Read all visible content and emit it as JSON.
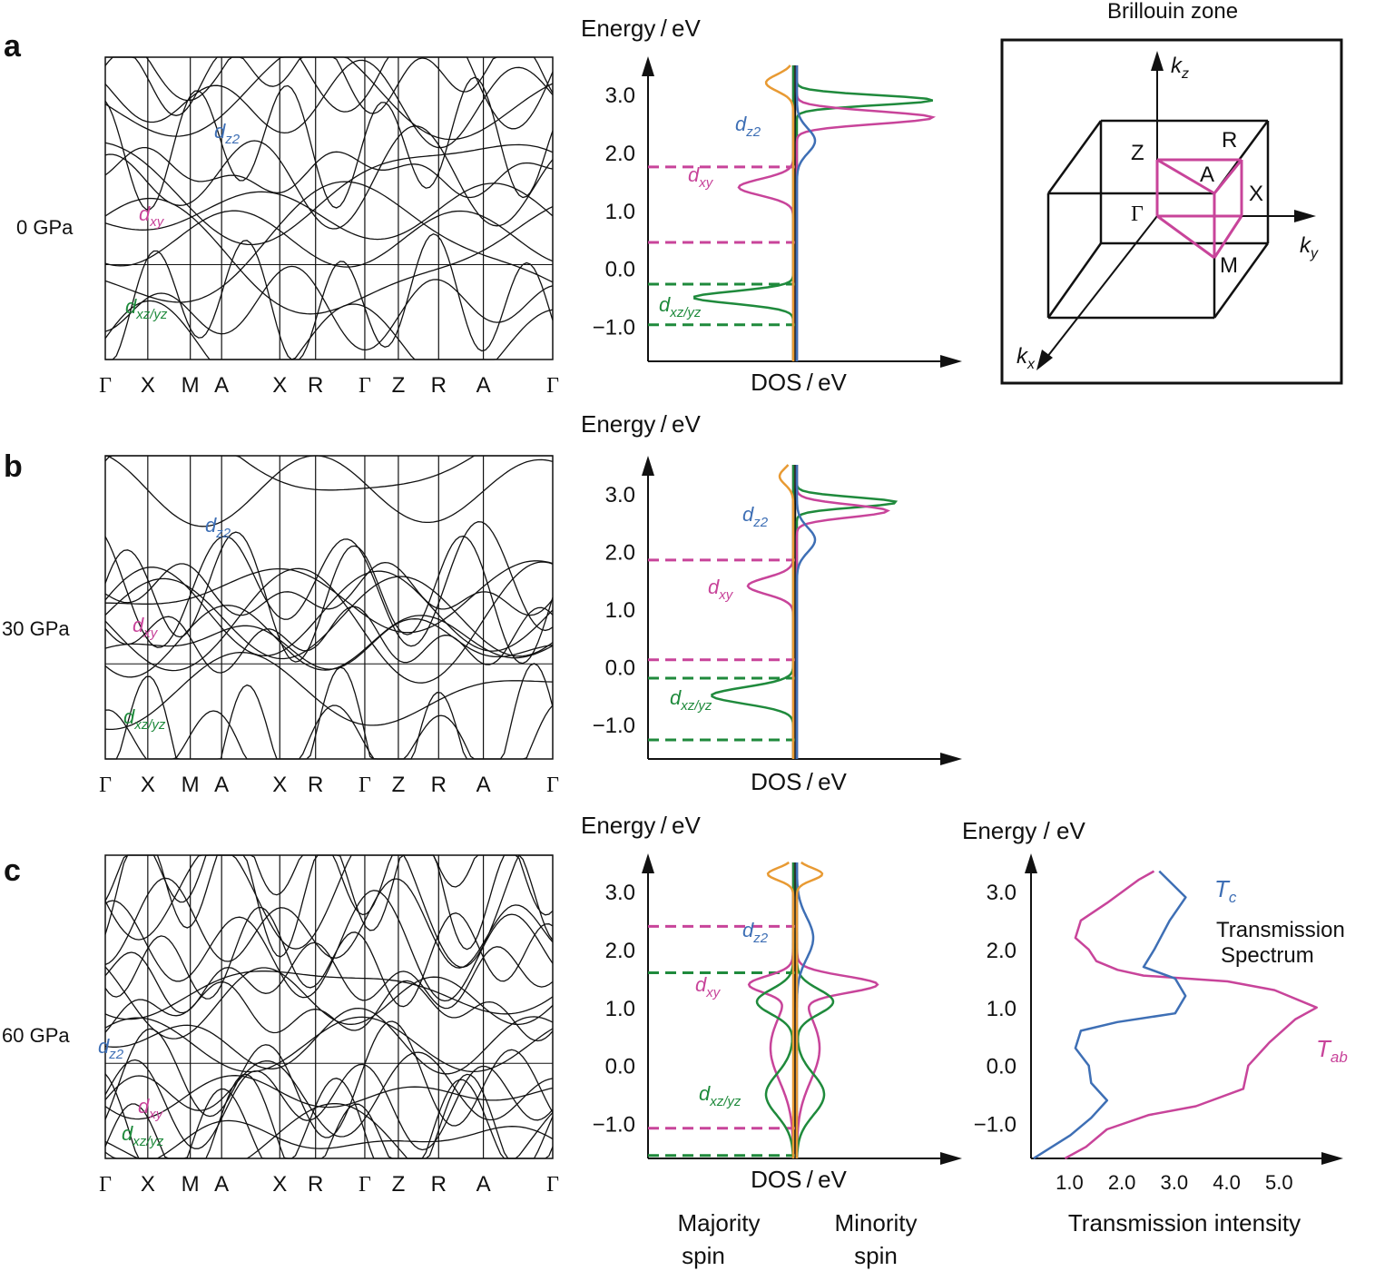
{
  "colors": {
    "pink": "#c8449a",
    "green": "#1f8a3c",
    "blue": "#3e6fb5",
    "orange": "#e89a33",
    "black": "#111111"
  },
  "panels": [
    {
      "letter": "a",
      "pressure": "0 GPa"
    },
    {
      "letter": "b",
      "pressure": "30 GPa"
    },
    {
      "letter": "c",
      "pressure": "60 GPa"
    }
  ],
  "labels": {
    "energy": "Energy / eV",
    "energy_spaced": "Energy / eV",
    "dos": "DOS / eV",
    "majority": [
      "Majority",
      "spin"
    ],
    "minority": [
      "Minority",
      "spin"
    ],
    "bz_title": "Brillouin zone",
    "trans_title": [
      "Transmission",
      "Spectrum"
    ],
    "trans_xlabel": "Transmission intensity",
    "dz2": "z2",
    "dxy": "xy",
    "dxzyz": "xz/yz",
    "tc": "c",
    "tab": "ab",
    "bz_points": [
      "Z",
      "R",
      "A",
      "X",
      "Γ",
      "M"
    ],
    "axes_k": [
      "z",
      "y",
      "x"
    ]
  },
  "chart_data": [
    {
      "type": "line",
      "subtitle": "a",
      "series_label": "0 GPa",
      "kpath": [
        "Γ",
        "X",
        "M",
        "A",
        "X",
        "R",
        "Γ",
        "Z",
        "R",
        "A",
        "Γ"
      ],
      "dos_ticks": [
        "3.0",
        "2.0",
        "1.0",
        "0.0",
        "−1.0"
      ],
      "ylim": [
        -1.6,
        3.5
      ],
      "annotations": {
        "dxy_levels": [
          1.75,
          0.45
        ],
        "dxzyz_levels": [
          -0.27,
          -0.97
        ]
      }
    },
    {
      "type": "line",
      "subtitle": "b",
      "series_label": "30 GPa",
      "kpath": [
        "Γ",
        "X",
        "M",
        "A",
        "X",
        "R",
        "Γ",
        "Z",
        "R",
        "A",
        "Γ"
      ],
      "dos_ticks": [
        "3.0",
        "2.0",
        "1.0",
        "0.0",
        "−1.0"
      ],
      "ylim": [
        -1.6,
        3.5
      ],
      "annotations": {
        "dxy_levels": [
          1.85,
          0.12
        ],
        "dxzyz_levels": [
          -0.2,
          -1.27
        ]
      }
    },
    {
      "type": "line",
      "subtitle": "c",
      "series_label": "60 GPa",
      "kpath": [
        "Γ",
        "X",
        "M",
        "A",
        "X",
        "R",
        "Γ",
        "Z",
        "R",
        "A",
        "Γ"
      ],
      "dos_ticks": [
        "3.0",
        "2.0",
        "1.0",
        "0.0",
        "−1.0"
      ],
      "ylim": [
        -1.6,
        3.5
      ],
      "annotations": {
        "dxy_levels": [
          2.4,
          -1.08
        ],
        "dxzyz_levels": [
          1.6,
          -1.55
        ]
      }
    },
    {
      "type": "line",
      "subtitle": "Transmission Spectrum",
      "xlabel": "Transmission intensity",
      "ylabel": "Energy / eV",
      "x_ticks": [
        "1.0",
        "2.0",
        "3.0",
        "4.0",
        "5.0"
      ],
      "y_ticks": [
        "3.0",
        "2.0",
        "1.0",
        "0.0",
        "−1.0"
      ],
      "xlim": [
        0.3,
        6.0
      ],
      "ylim": [
        -1.6,
        3.5
      ],
      "series": [
        {
          "name": "Tab",
          "points": [
            [
              2.7,
              3.35
            ],
            [
              2.3,
              3.2
            ],
            [
              1.8,
              2.8
            ],
            [
              1.2,
              2.5
            ],
            [
              1.2,
              2.2
            ],
            [
              1.35,
              2.0
            ],
            [
              1.6,
              1.8
            ],
            [
              1.9,
              1.65
            ],
            [
              2.5,
              1.55
            ],
            [
              4.0,
              1.45
            ],
            [
              5.0,
              1.3
            ],
            [
              5.7,
              1.0
            ],
            [
              5.4,
              0.8
            ],
            [
              4.8,
              0.4
            ],
            [
              4.5,
              0.0
            ],
            [
              4.3,
              -0.4
            ],
            [
              3.5,
              -0.7
            ],
            [
              2.5,
              -0.85
            ],
            [
              1.8,
              -1.1
            ],
            [
              1.3,
              -1.4
            ],
            [
              1.0,
              -1.6
            ]
          ]
        },
        {
          "name": "Tc",
          "points": [
            [
              2.8,
              3.35
            ],
            [
              3.2,
              2.9
            ],
            [
              3.0,
              2.5
            ],
            [
              2.6,
              2.0
            ],
            [
              2.5,
              1.7
            ],
            [
              3.0,
              1.5
            ],
            [
              3.3,
              1.2
            ],
            [
              3.0,
              0.9
            ],
            [
              2.0,
              0.75
            ],
            [
              1.2,
              0.6
            ],
            [
              1.2,
              0.3
            ],
            [
              1.35,
              0.0
            ],
            [
              1.5,
              -0.3
            ],
            [
              1.7,
              -0.6
            ],
            [
              1.5,
              -0.9
            ],
            [
              1.0,
              -1.2
            ],
            [
              0.4,
              -1.6
            ]
          ]
        }
      ]
    }
  ]
}
